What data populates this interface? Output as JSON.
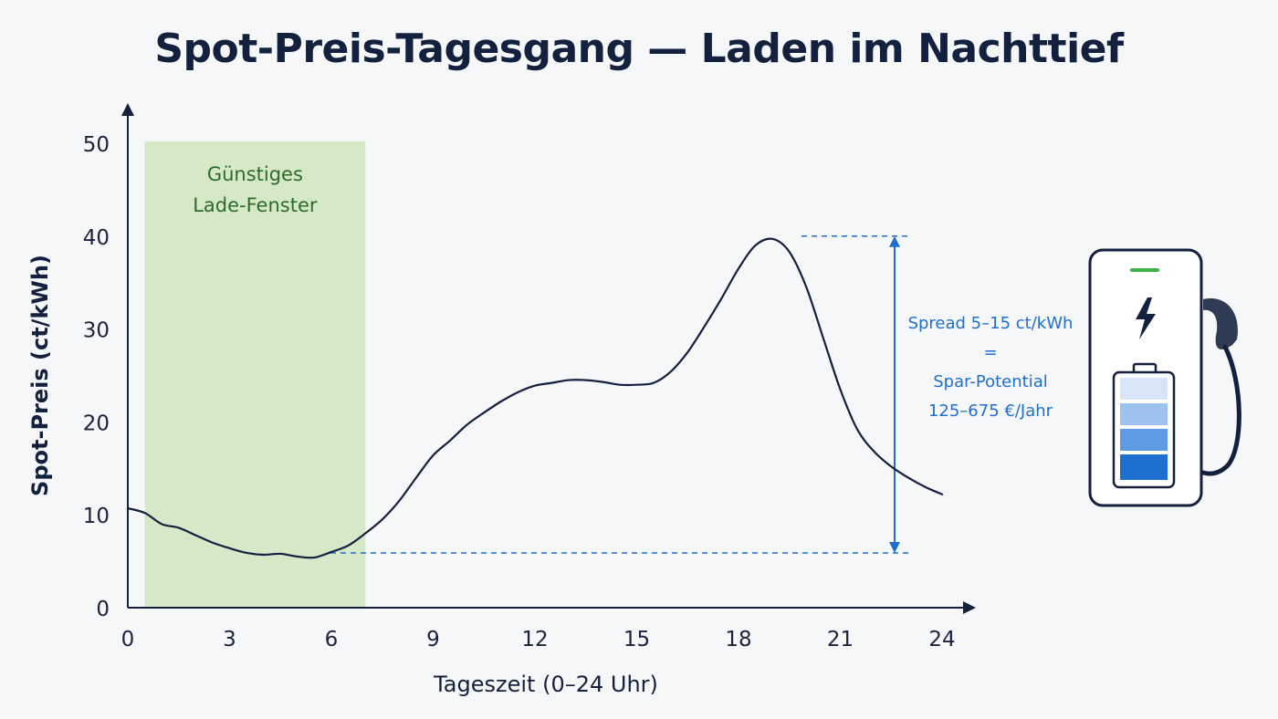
{
  "title": "Spot-Preis-Tagesgang — Laden im Nachttief",
  "colors": {
    "line": "#13213f",
    "window_fill": "#d5e8c8",
    "window_text": "#2e6b2a",
    "accent": "#1f6fd1",
    "battery_dark": "#1f6fd1",
    "battery_light": "#d7e6f7",
    "status_green": "#3fb24b"
  },
  "icons": {
    "charger": "ev-charger-icon",
    "bolt": "lightning-bolt-icon",
    "battery": "battery-icon"
  },
  "chart_data": {
    "type": "line",
    "title": "Spot-Preis-Tagesgang — Laden im Nachttief",
    "xlabel": "Tageszeit (0–24 Uhr)",
    "ylabel": "Spot-Preis (ct/kWh)",
    "xlim": [
      0,
      24
    ],
    "ylim": [
      0,
      50
    ],
    "xticks": [
      0,
      3,
      6,
      9,
      12,
      15,
      18,
      21,
      24
    ],
    "yticks": [
      0,
      10,
      20,
      30,
      40,
      50
    ],
    "grid": false,
    "series": [
      {
        "x": [
          0,
          0.5,
          1,
          1.5,
          2,
          2.5,
          3,
          3.5,
          4,
          4.5,
          5,
          5.5,
          6,
          6.5,
          7,
          7.5,
          8,
          8.5,
          9,
          9.5,
          10,
          10.5,
          11,
          11.5,
          12,
          12.5,
          13,
          13.5,
          14,
          14.5,
          15,
          15.5,
          16,
          16.5,
          17,
          17.5,
          18,
          18.5,
          19,
          19.5,
          20,
          20.5,
          21,
          21.5,
          22,
          22.5,
          23,
          23.5,
          24
        ],
        "y": [
          10.7,
          10.2,
          9.0,
          8.6,
          7.8,
          7.0,
          6.4,
          5.9,
          5.7,
          5.8,
          5.5,
          5.4,
          6.0,
          6.7,
          8.0,
          9.5,
          11.5,
          14.0,
          16.4,
          18.0,
          19.7,
          21.0,
          22.2,
          23.2,
          23.9,
          24.2,
          24.5,
          24.5,
          24.3,
          24.0,
          24.0,
          24.2,
          25.4,
          27.5,
          30.3,
          33.3,
          36.5,
          39.0,
          39.7,
          38.3,
          34.5,
          29.0,
          23.5,
          19.2,
          16.8,
          15.2,
          14.0,
          13.0,
          12.2
        ]
      }
    ],
    "highlight_window": {
      "x_start": 0.5,
      "x_end": 7,
      "label_line1": "Günstiges",
      "label_line2": "Lade-Fenster"
    },
    "spread_annotation": {
      "y_low": 5.9,
      "y_high": 40,
      "lines": [
        "Spread 5–15 ct/kWh",
        "=",
        "Spar-Potential",
        "125–675 €/Jahr"
      ]
    }
  }
}
